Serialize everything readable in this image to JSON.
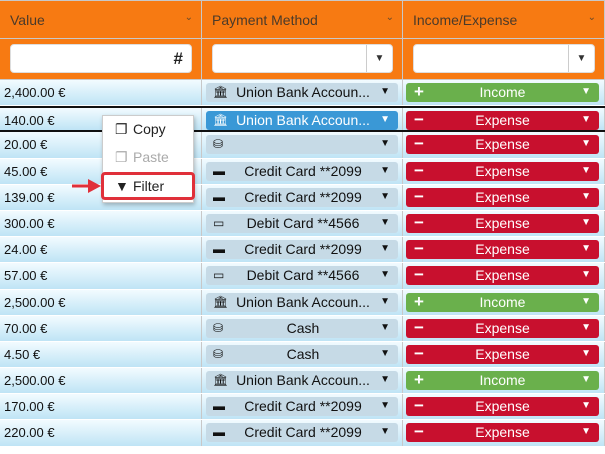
{
  "columns": [
    {
      "label": "Value"
    },
    {
      "label": "Payment Method"
    },
    {
      "label": "Income/Expense"
    }
  ],
  "filters": {
    "value_icon": "#",
    "dropdown_icon": "▼"
  },
  "rows": [
    {
      "value": "2,400.00 €",
      "method": "Union Bank Accoun...",
      "method_icon": "bank",
      "type": "Income"
    },
    {
      "value": "140.00 €",
      "method": "Union Bank Accoun...",
      "method_icon": "bank",
      "type": "Expense",
      "selected": true
    },
    {
      "value": "20.00 €",
      "method": "",
      "method_icon": "coins",
      "type": "Expense"
    },
    {
      "value": "45.00 €",
      "method": "Credit Card **2099",
      "method_icon": "credit-card",
      "type": "Expense"
    },
    {
      "value": "139.00 €",
      "method": "Credit Card **2099",
      "method_icon": "credit-card",
      "type": "Expense"
    },
    {
      "value": "300.00 €",
      "method": "Debit Card **4566",
      "method_icon": "debit-card",
      "type": "Expense"
    },
    {
      "value": "24.00 €",
      "method": "Credit Card **2099",
      "method_icon": "credit-card",
      "type": "Expense"
    },
    {
      "value": "57.00 €",
      "method": "Debit Card **4566",
      "method_icon": "debit-card",
      "type": "Expense"
    },
    {
      "value": "2,500.00 €",
      "method": "Union Bank Accoun...",
      "method_icon": "bank",
      "type": "Income"
    },
    {
      "value": "70.00 €",
      "method": "Cash",
      "method_icon": "coins",
      "type": "Expense"
    },
    {
      "value": "4.50 €",
      "method": "Cash",
      "method_icon": "coins",
      "type": "Expense"
    },
    {
      "value": "2,500.00 €",
      "method": "Union Bank Accoun...",
      "method_icon": "bank",
      "type": "Income"
    },
    {
      "value": "170.00 €",
      "method": "Credit Card **2099",
      "method_icon": "credit-card",
      "type": "Expense"
    },
    {
      "value": "220.00 €",
      "method": "Credit Card **2099",
      "method_icon": "credit-card",
      "type": "Expense"
    }
  ],
  "context_menu": {
    "items": [
      {
        "label": "Copy",
        "icon": "copy",
        "disabled": false
      },
      {
        "label": "Paste",
        "icon": "paste",
        "disabled": true
      },
      {
        "label": "Filter",
        "icon": "filter",
        "disabled": false,
        "highlighted": true
      }
    ]
  },
  "colors": {
    "header": "#f77a12",
    "income": "#6ab04c",
    "expense": "#c8102e",
    "selected_method": "#3a98d6",
    "highlight": "#e0303a"
  }
}
